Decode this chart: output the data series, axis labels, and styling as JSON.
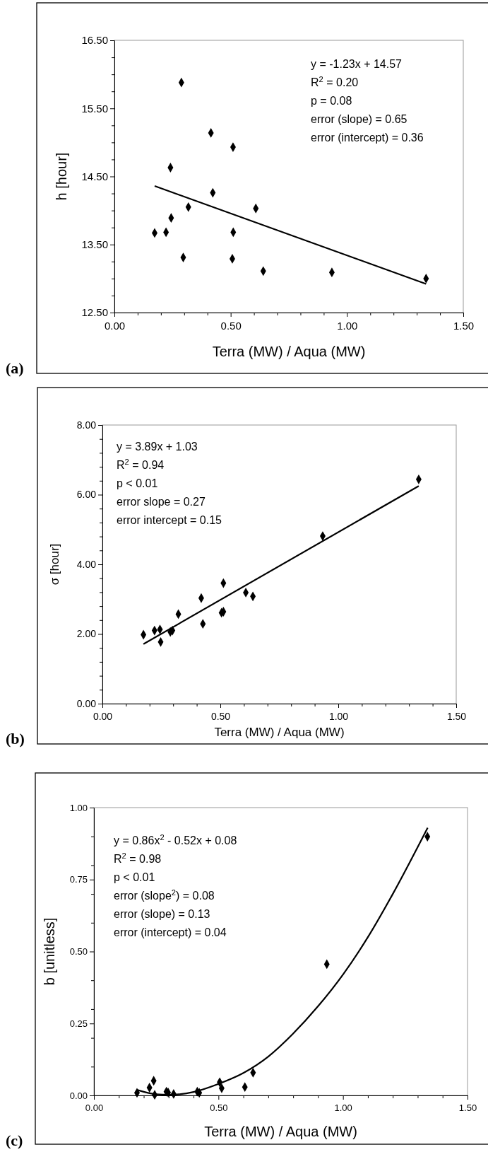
{
  "chart_data": [
    {
      "type": "scatter",
      "xlabel": "Terra (MW) / Aqua (MW)",
      "ylabel": "h [hour]",
      "xlim": [
        0,
        1.5
      ],
      "ylim": [
        12.5,
        16.5
      ],
      "xticks": [
        {
          "value": 0,
          "label": "0.00"
        },
        {
          "value": 0.1,
          "label": null
        },
        {
          "value": 0.2,
          "label": null
        },
        {
          "value": 0.3,
          "label": null
        },
        {
          "value": 0.4,
          "label": null
        },
        {
          "value": 0.5,
          "label": "0.50"
        },
        {
          "value": 0.6,
          "label": null
        },
        {
          "value": 0.7,
          "label": null
        },
        {
          "value": 0.8,
          "label": null
        },
        {
          "value": 0.9,
          "label": null
        },
        {
          "value": 1,
          "label": "1.00"
        },
        {
          "value": 1.1,
          "label": null
        },
        {
          "value": 1.2,
          "label": null
        },
        {
          "value": 1.3,
          "label": null
        },
        {
          "value": 1.4,
          "label": null
        },
        {
          "value": 1.5,
          "label": "1.50"
        }
      ],
      "yticks": [
        {
          "value": 12.5,
          "label": "12.50"
        },
        {
          "value": 12.75,
          "label": null
        },
        {
          "value": 13,
          "label": null
        },
        {
          "value": 13.25,
          "label": null
        },
        {
          "value": 13.5,
          "label": "13.50"
        },
        {
          "value": 13.75,
          "label": null
        },
        {
          "value": 14,
          "label": null
        },
        {
          "value": 14.25,
          "label": null
        },
        {
          "value": 14.5,
          "label": "14.50"
        },
        {
          "value": 14.75,
          "label": null
        },
        {
          "value": 15,
          "label": null
        },
        {
          "value": 15.25,
          "label": null
        },
        {
          "value": 15.5,
          "label": "15.50"
        },
        {
          "value": 15.75,
          "label": null
        },
        {
          "value": 16,
          "label": null
        },
        {
          "value": 16.25,
          "label": null
        },
        {
          "value": 16.5,
          "label": "16.50"
        }
      ],
      "grid": false,
      "series": [
        {
          "marker": "diamond",
          "color": "#000000",
          "x": [
            0.173,
            0.222,
            0.244,
            0.241,
            0.288,
            0.296,
            0.318,
            0.415,
            0.423,
            0.51,
            0.511,
            0.507,
            0.608,
            0.64,
            0.935,
            1.34
          ],
          "values": [
            13.67,
            13.68,
            13.89,
            14.63,
            15.88,
            13.31,
            14.05,
            15.14,
            14.26,
            14.93,
            13.68,
            13.29,
            14.03,
            13.11,
            13.09,
            13.0
          ]
        },
        {
          "type": "line",
          "color": "#000000",
          "x": [
            0.173,
            1.34
          ],
          "values": [
            14.36,
            12.92
          ]
        }
      ],
      "annotations": [
        "(a)",
        "y = -1.23x + 14.57",
        "R$^{2}$ = 0.20",
        "p = 0.08",
        "error (slope) = 0.65",
        "error (intercept) = 0.36"
      ]
    },
    {
      "type": "scatter",
      "xlabel": "Terra (MW) / Aqua (MW)",
      "ylabel": "σ [hour]",
      "xlim": [
        0,
        1.5
      ],
      "ylim": [
        0,
        8
      ],
      "xticks": [
        {
          "value": 0,
          "label": "0.00"
        },
        {
          "value": 0.1,
          "label": null
        },
        {
          "value": 0.2,
          "label": null
        },
        {
          "value": 0.3,
          "label": null
        },
        {
          "value": 0.4,
          "label": null
        },
        {
          "value": 0.5,
          "label": "0.50"
        },
        {
          "value": 0.6,
          "label": null
        },
        {
          "value": 0.7,
          "label": null
        },
        {
          "value": 0.8,
          "label": null
        },
        {
          "value": 0.9,
          "label": null
        },
        {
          "value": 1,
          "label": "1.00"
        },
        {
          "value": 1.1,
          "label": null
        },
        {
          "value": 1.2,
          "label": null
        },
        {
          "value": 1.3,
          "label": null
        },
        {
          "value": 1.4,
          "label": null
        },
        {
          "value": 1.5,
          "label": "1.50"
        }
      ],
      "yticks": [
        {
          "value": 0,
          "label": "0.00"
        },
        {
          "value": 0.4,
          "label": null
        },
        {
          "value": 0.8,
          "label": null
        },
        {
          "value": 1.2,
          "label": null
        },
        {
          "value": 1.6,
          "label": null
        },
        {
          "value": 2,
          "label": "2.00"
        },
        {
          "value": 2.4,
          "label": null
        },
        {
          "value": 2.8,
          "label": null
        },
        {
          "value": 3.2,
          "label": null
        },
        {
          "value": 3.6,
          "label": null
        },
        {
          "value": 4,
          "label": "4.00"
        },
        {
          "value": 4.4,
          "label": null
        },
        {
          "value": 4.8,
          "label": null
        },
        {
          "value": 5.2,
          "label": null
        },
        {
          "value": 5.6,
          "label": null
        },
        {
          "value": 6,
          "label": "6.00"
        },
        {
          "value": 6.4,
          "label": null
        },
        {
          "value": 6.8,
          "label": null
        },
        {
          "value": 7.2,
          "label": null
        },
        {
          "value": 7.6,
          "label": null
        },
        {
          "value": 8,
          "label": "8.00"
        }
      ],
      "grid": false,
      "series": [
        {
          "marker": "diamond",
          "color": "#000000",
          "x": [
            0.174,
            0.221,
            0.244,
            0.247,
            0.288,
            0.297,
            0.322,
            0.419,
            0.426,
            0.505,
            0.513,
            0.513,
            0.608,
            0.638,
            0.934,
            1.341
          ],
          "values": [
            1.98,
            2.1,
            2.13,
            1.77,
            2.06,
            2.1,
            2.57,
            3.03,
            2.29,
            2.61,
            2.64,
            3.46,
            3.19,
            3.08,
            4.81,
            6.44
          ]
        },
        {
          "type": "line",
          "color": "#000000",
          "x": [
            0.174,
            1.341
          ],
          "values": [
            1.71,
            6.25
          ]
        }
      ],
      "annotations": [
        "(b)",
        "y = 3.89x + 1.03",
        "R$^{2}$ = 0.94",
        "p < 0.01",
        "error slope = 0.27",
        "error intercept = 0.15"
      ]
    },
    {
      "type": "scatter",
      "xlabel": "Terra (MW) / Aqua (MW)",
      "ylabel": "b [unitless]",
      "xlim": [
        0,
        1.5
      ],
      "ylim": [
        0,
        1
      ],
      "xticks": [
        {
          "value": 0,
          "label": "0.00"
        },
        {
          "value": 0.1,
          "label": null
        },
        {
          "value": 0.2,
          "label": null
        },
        {
          "value": 0.3,
          "label": null
        },
        {
          "value": 0.4,
          "label": null
        },
        {
          "value": 0.5,
          "label": "0.50"
        },
        {
          "value": 0.6,
          "label": null
        },
        {
          "value": 0.7,
          "label": null
        },
        {
          "value": 0.8,
          "label": null
        },
        {
          "value": 0.9,
          "label": null
        },
        {
          "value": 1,
          "label": "1.00"
        },
        {
          "value": 1.1,
          "label": null
        },
        {
          "value": 1.2,
          "label": null
        },
        {
          "value": 1.3,
          "label": null
        },
        {
          "value": 1.4,
          "label": null
        },
        {
          "value": 1.5,
          "label": "1.50"
        }
      ],
      "yticks": [
        {
          "value": 0,
          "label": "0.00"
        },
        {
          "value": 0.1,
          "label": null
        },
        {
          "value": 0.2,
          "label": null
        },
        {
          "value": 0.25,
          "label": "0.25"
        },
        {
          "value": 0.3,
          "label": null
        },
        {
          "value": 0.4,
          "label": null
        },
        {
          "value": 0.5,
          "label": "0.50"
        },
        {
          "value": 0.6,
          "label": null
        },
        {
          "value": 0.7,
          "label": null
        },
        {
          "value": 0.75,
          "label": "0.75"
        },
        {
          "value": 0.8,
          "label": null
        },
        {
          "value": 0.9,
          "label": null
        },
        {
          "value": 1,
          "label": "1.00"
        }
      ],
      "grid": false,
      "series": [
        {
          "marker": "diamond",
          "color": "#000000",
          "x": [
            0.173,
            0.223,
            0.24,
            0.244,
            0.291,
            0.298,
            0.32,
            0.415,
            0.423,
            0.505,
            0.513,
            0.606,
            0.639,
            0.935,
            1.339
          ],
          "values": [
            0.009,
            0.027,
            0.051,
            0.002,
            0.013,
            0.01,
            0.005,
            0.013,
            0.009,
            0.046,
            0.025,
            0.029,
            0.079,
            0.456,
            0.899
          ]
        },
        {
          "type": "line",
          "color": "#000000",
          "x": [
            0.17,
            0.25,
            0.3,
            0.4,
            0.5,
            0.6,
            0.7,
            0.8,
            0.9,
            1.0,
            1.1,
            1.2,
            1.34
          ],
          "values": [
            0.02,
            0.004,
            0.002,
            0.012,
            0.04,
            0.078,
            0.135,
            0.215,
            0.31,
            0.42,
            0.55,
            0.7,
            0.93
          ]
        }
      ],
      "annotations": [
        "(c)",
        "y = 0.86x$^{2}$ - 0.52x + 0.08",
        "R$^{2}$ = 0.98",
        "p < 0.01",
        "error (slope$^{2}$) = 0.08",
        "error (slope) = 0.13",
        "error (intercept) = 0.04"
      ]
    }
  ]
}
